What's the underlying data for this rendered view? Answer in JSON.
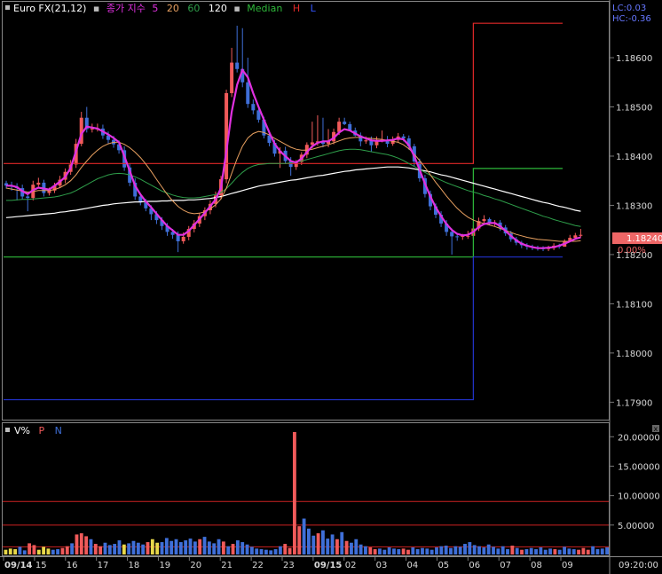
{
  "main_legend": {
    "instrument": "Euro FX(21,12)",
    "ma_label": "종가 지수",
    "ma5": "5",
    "ma20": "20",
    "ma60": "60",
    "ma120": "120",
    "median": "Median",
    "h": "H",
    "l": "L"
  },
  "readouts": {
    "lc": "LC:0.03",
    "hc": "HC:-0.36"
  },
  "last_price": {
    "value": "1.18240",
    "pct": "0.00%"
  },
  "vol_legend": {
    "name": "V%",
    "p": "P",
    "n": "N"
  },
  "time_label": "09:20:00",
  "colors": {
    "up": "#f05a5a",
    "down": "#3f6fd8",
    "ma5": "#e030e0",
    "ma20": "#e8a060",
    "ma60": "#2e9e4a",
    "ma120": "#ffffff",
    "h_line": "#e02828",
    "median_line": "#2eb83a",
    "l_line": "#2233cc",
    "grid": "#777777",
    "last_bg": "#ee6666"
  },
  "chart_data": [
    {
      "type": "candlestick",
      "title": "Euro FX(21,12)",
      "ylim": [
        1.1787,
        1.1871
      ],
      "y_ticks": [
        "1.18600",
        "1.18500",
        "1.18400",
        "1.18300",
        "1.18200",
        "1.18100",
        "1.18000",
        "1.17900"
      ],
      "x_ticks": [
        "09/14",
        "15",
        "16",
        "17",
        "18",
        "19",
        "20",
        "21",
        "22",
        "23",
        "09/15",
        "02",
        "03",
        "04",
        "05",
        "06",
        "07",
        "08",
        "09"
      ],
      "candles": {
        "open": [
          1.18345,
          1.1834,
          1.18338,
          1.18335,
          1.18318,
          1.18315,
          1.18342,
          1.18346,
          1.18325,
          1.1833,
          1.1834,
          1.18352,
          1.18368,
          1.18383,
          1.18425,
          1.18478,
          1.18455,
          1.18456,
          1.18456,
          1.18442,
          1.18433,
          1.18424,
          1.18412,
          1.18377,
          1.18346,
          1.18318,
          1.18306,
          1.18294,
          1.18282,
          1.1827,
          1.18258,
          1.18246,
          1.1824,
          1.18227,
          1.18236,
          1.18252,
          1.18263,
          1.18278,
          1.1829,
          1.18303,
          1.1832,
          1.18353,
          1.18528,
          1.1859,
          1.18577,
          1.1855,
          1.18506,
          1.18493,
          1.18474,
          1.18442,
          1.18427,
          1.18405,
          1.18411,
          1.1839,
          1.18378,
          1.18388,
          1.18403,
          1.18423,
          1.18428,
          1.1843,
          1.18425,
          1.1843,
          1.18449,
          1.1847,
          1.18465,
          1.18452,
          1.18442,
          1.1843,
          1.18432,
          1.18422,
          1.18433,
          1.18433,
          1.18425,
          1.18433,
          1.1844,
          1.18436,
          1.1842,
          1.18389,
          1.18355,
          1.18323,
          1.18298,
          1.18281,
          1.18263,
          1.18246,
          1.18237,
          1.18236,
          1.18238,
          1.18238,
          1.18253,
          1.18268,
          1.18272,
          1.18265,
          1.18265,
          1.18255,
          1.18243,
          1.18231,
          1.18224,
          1.18219,
          1.18216,
          1.18214,
          1.18213,
          1.18212,
          1.18213,
          1.18218,
          1.18216,
          1.18226,
          1.18234,
          1.18239
        ],
        "close": [
          1.1834,
          1.18338,
          1.18335,
          1.18318,
          1.18315,
          1.18342,
          1.18346,
          1.18325,
          1.1833,
          1.1834,
          1.18352,
          1.18368,
          1.18383,
          1.18425,
          1.18478,
          1.18455,
          1.18456,
          1.18456,
          1.18442,
          1.18433,
          1.18424,
          1.18412,
          1.18377,
          1.18346,
          1.18318,
          1.18306,
          1.18294,
          1.18282,
          1.1827,
          1.18258,
          1.18246,
          1.1824,
          1.18227,
          1.18236,
          1.18252,
          1.18263,
          1.18278,
          1.1829,
          1.18303,
          1.1832,
          1.18353,
          1.18528,
          1.1859,
          1.18577,
          1.1855,
          1.18506,
          1.18493,
          1.18474,
          1.18442,
          1.18427,
          1.18405,
          1.18411,
          1.1839,
          1.18378,
          1.18388,
          1.18403,
          1.18423,
          1.18428,
          1.1843,
          1.18425,
          1.1843,
          1.18449,
          1.1847,
          1.18465,
          1.18452,
          1.18442,
          1.1843,
          1.18432,
          1.18422,
          1.18433,
          1.18433,
          1.18425,
          1.18433,
          1.1844,
          1.18436,
          1.1842,
          1.18389,
          1.18355,
          1.18323,
          1.18298,
          1.18281,
          1.18263,
          1.18246,
          1.18237,
          1.18236,
          1.18238,
          1.18238,
          1.18253,
          1.18268,
          1.18272,
          1.18265,
          1.18265,
          1.18255,
          1.18243,
          1.18231,
          1.18224,
          1.18219,
          1.18216,
          1.18214,
          1.18213,
          1.18212,
          1.18213,
          1.18218,
          1.18216,
          1.18226,
          1.18234,
          1.18239,
          1.1824
        ],
        "high": [
          1.1835,
          1.18348,
          1.18345,
          1.18342,
          1.18325,
          1.1835,
          1.18356,
          1.18352,
          1.18336,
          1.18346,
          1.1836,
          1.18375,
          1.18392,
          1.18435,
          1.1849,
          1.185,
          1.18466,
          1.18466,
          1.18464,
          1.1845,
          1.18441,
          1.18432,
          1.1842,
          1.18385,
          1.18355,
          1.18325,
          1.18313,
          1.183,
          1.18288,
          1.18276,
          1.18264,
          1.18252,
          1.18247,
          1.18245,
          1.18258,
          1.1827,
          1.18285,
          1.18296,
          1.1831,
          1.18328,
          1.1836,
          1.18535,
          1.1862,
          1.18665,
          1.1866,
          1.186,
          1.18515,
          1.185,
          1.1848,
          1.1845,
          1.18433,
          1.18418,
          1.18419,
          1.18398,
          1.18392,
          1.18408,
          1.18428,
          1.1847,
          1.18483,
          1.18478,
          1.18455,
          1.18456,
          1.18478,
          1.18478,
          1.1847,
          1.18458,
          1.18448,
          1.1844,
          1.1844,
          1.1844,
          1.18452,
          1.18441,
          1.1844,
          1.18447,
          1.18445,
          1.18442,
          1.18425,
          1.18395,
          1.18362,
          1.1833,
          1.18304,
          1.18288,
          1.1827,
          1.18253,
          1.18243,
          1.18242,
          1.18248,
          1.1826,
          1.18275,
          1.1828,
          1.18275,
          1.1827,
          1.1827,
          1.1826,
          1.18248,
          1.18236,
          1.18228,
          1.18223,
          1.1822,
          1.18218,
          1.18217,
          1.18218,
          1.18223,
          1.18222,
          1.18231,
          1.1824,
          1.18244,
          1.18252
        ],
        "low": [
          1.18334,
          1.1833,
          1.1831,
          1.18312,
          1.18288,
          1.1831,
          1.18338,
          1.18318,
          1.1832,
          1.18325,
          1.18335,
          1.18345,
          1.18362,
          1.18376,
          1.1842,
          1.18448,
          1.18448,
          1.1845,
          1.18435,
          1.18426,
          1.18417,
          1.18405,
          1.1837,
          1.18339,
          1.18311,
          1.183,
          1.18288,
          1.1827,
          1.18262,
          1.1825,
          1.18238,
          1.18232,
          1.18205,
          1.18222,
          1.18229,
          1.18245,
          1.18256,
          1.1827,
          1.18282,
          1.18296,
          1.18312,
          1.18345,
          1.1852,
          1.1857,
          1.1854,
          1.18498,
          1.18485,
          1.18468,
          1.18436,
          1.1842,
          1.18399,
          1.18376,
          1.18384,
          1.1836,
          1.18372,
          1.18382,
          1.18396,
          1.18416,
          1.18421,
          1.18418,
          1.18418,
          1.18424,
          1.18443,
          1.18463,
          1.18458,
          1.1844,
          1.1842,
          1.18425,
          1.18408,
          1.18416,
          1.18428,
          1.18418,
          1.18421,
          1.18428,
          1.1843,
          1.18413,
          1.1838,
          1.18348,
          1.18316,
          1.1829,
          1.18274,
          1.18256,
          1.18238,
          1.182,
          1.18228,
          1.1823,
          1.18232,
          1.18233,
          1.18248,
          1.18262,
          1.1826,
          1.18258,
          1.18248,
          1.18238,
          1.18226,
          1.18219,
          1.18213,
          1.1821,
          1.18209,
          1.18208,
          1.18207,
          1.18207,
          1.18209,
          1.18212,
          1.18216,
          1.18226,
          1.18232,
          1.18235
        ]
      },
      "ma5": [
        1.1834,
        1.1834,
        1.18337,
        1.18329,
        1.18323,
        1.18331,
        1.18336,
        1.18334,
        1.18332,
        1.1834,
        1.18348,
        1.18358,
        1.18376,
        1.1841,
        1.18445,
        1.1846,
        1.18458,
        1.18456,
        1.1845,
        1.18444,
        1.18437,
        1.18428,
        1.184,
        1.1837,
        1.1834,
        1.18322,
        1.18308,
        1.18296,
        1.18283,
        1.1827,
        1.18258,
        1.18249,
        1.1824,
        1.1824,
        1.18248,
        1.1826,
        1.18272,
        1.18285,
        1.18298,
        1.18312,
        1.18335,
        1.1841,
        1.1849,
        1.18545,
        1.18575,
        1.1856,
        1.18528,
        1.185,
        1.18474,
        1.18448,
        1.18425,
        1.1841,
        1.184,
        1.1839,
        1.18387,
        1.18395,
        1.18408,
        1.1842,
        1.18427,
        1.1843,
        1.1843,
        1.18437,
        1.18448,
        1.18455,
        1.18452,
        1.18446,
        1.1844,
        1.18436,
        1.18432,
        1.18431,
        1.18431,
        1.18432,
        1.18433,
        1.18436,
        1.18434,
        1.18422,
        1.184,
        1.18372,
        1.18344,
        1.18318,
        1.18296,
        1.18278,
        1.18262,
        1.1825,
        1.18242,
        1.18239,
        1.1824,
        1.18246,
        1.18256,
        1.18262,
        1.18264,
        1.18264,
        1.18258,
        1.18248,
        1.18238,
        1.18229,
        1.18222,
        1.18218,
        1.18215,
        1.18213,
        1.18213,
        1.18214,
        1.18215,
        1.18218,
        1.18222,
        1.18227,
        1.18232,
        1.18235
      ],
      "ma20": [
        1.18335,
        1.18333,
        1.18331,
        1.18329,
        1.18327,
        1.18328,
        1.1833,
        1.1833,
        1.1833,
        1.18332,
        1.18336,
        1.18342,
        1.1835,
        1.18362,
        1.18377,
        1.1839,
        1.18402,
        1.18412,
        1.1842,
        1.18425,
        1.18428,
        1.18428,
        1.18424,
        1.18417,
        1.18408,
        1.18397,
        1.18384,
        1.18369,
        1.18353,
        1.18337,
        1.18322,
        1.18309,
        1.18298,
        1.1829,
        1.18285,
        1.18283,
        1.18284,
        1.18287,
        1.18293,
        1.18301,
        1.18313,
        1.18335,
        1.18365,
        1.18395,
        1.1842,
        1.18437,
        1.18446,
        1.1845,
        1.18448,
        1.18443,
        1.18436,
        1.1843,
        1.18424,
        1.18418,
        1.18414,
        1.18412,
        1.18412,
        1.18414,
        1.18417,
        1.1842,
        1.18423,
        1.18427,
        1.18431,
        1.18435,
        1.18437,
        1.18438,
        1.18438,
        1.18437,
        1.18436,
        1.18435,
        1.18434,
        1.18432,
        1.1843,
        1.18428,
        1.18423,
        1.18415,
        1.18404,
        1.18391,
        1.18377,
        1.18362,
        1.18347,
        1.18333,
        1.18319,
        1.18306,
        1.18294,
        1.18284,
        1.18276,
        1.1827,
        1.18266,
        1.18263,
        1.1826,
        1.18257,
        1.18253,
        1.18249,
        1.18245,
        1.18241,
        1.18238,
        1.18235,
        1.18233,
        1.18231,
        1.1823,
        1.18229,
        1.18228,
        1.18227,
        1.18227,
        1.18227,
        1.18227,
        1.18228
      ],
      "ma60": [
        1.1831,
        1.1831,
        1.18311,
        1.18312,
        1.18312,
        1.18313,
        1.18314,
        1.18315,
        1.18316,
        1.18317,
        1.18319,
        1.18322,
        1.18325,
        1.1833,
        1.18336,
        1.18342,
        1.18348,
        1.18354,
        1.18358,
        1.18362,
        1.18364,
        1.18365,
        1.18364,
        1.18362,
        1.18358,
        1.18353,
        1.18347,
        1.18341,
        1.18335,
        1.18329,
        1.18325,
        1.18321,
        1.18318,
        1.18316,
        1.18315,
        1.18315,
        1.18316,
        1.18318,
        1.1832,
        1.18322,
        1.18326,
        1.18334,
        1.18345,
        1.18357,
        1.18367,
        1.18375,
        1.1838,
        1.18383,
        1.18384,
        1.18385,
        1.18385,
        1.18385,
        1.18385,
        1.18386,
        1.18388,
        1.1839,
        1.18393,
        1.18396,
        1.18399,
        1.18402,
        1.18405,
        1.18408,
        1.18411,
        1.18413,
        1.18414,
        1.18414,
        1.18413,
        1.18411,
        1.18409,
        1.18407,
        1.18405,
        1.18403,
        1.184,
        1.18396,
        1.18391,
        1.18385,
        1.18379,
        1.18373,
        1.18367,
        1.18361,
        1.18356,
        1.18351,
        1.18346,
        1.18342,
        1.18338,
        1.18334,
        1.1833,
        1.18327,
        1.18324,
        1.1832,
        1.18317,
        1.18313,
        1.1831,
        1.18306,
        1.18302,
        1.18298,
        1.18294,
        1.1829,
        1.18286,
        1.18282,
        1.18278,
        1.18275,
        1.18271,
        1.18268,
        1.18265,
        1.18262,
        1.18259,
        1.18257
      ],
      "ma120": [
        1.18275,
        1.18276,
        1.18277,
        1.18278,
        1.18279,
        1.1828,
        1.18281,
        1.18282,
        1.18283,
        1.18284,
        1.18286,
        1.18287,
        1.18289,
        1.1829,
        1.18292,
        1.18294,
        1.18296,
        1.18298,
        1.183,
        1.18301,
        1.18303,
        1.18304,
        1.18305,
        1.18306,
        1.18307,
        1.18307,
        1.18308,
        1.18308,
        1.18308,
        1.18309,
        1.18309,
        1.1831,
        1.1831,
        1.1831,
        1.18311,
        1.18311,
        1.18312,
        1.18313,
        1.18314,
        1.18316,
        1.18318,
        1.18321,
        1.18324,
        1.18327,
        1.1833,
        1.18333,
        1.18336,
        1.18339,
        1.18341,
        1.18343,
        1.18345,
        1.18347,
        1.18349,
        1.18351,
        1.18352,
        1.18354,
        1.18356,
        1.18358,
        1.1836,
        1.18361,
        1.18363,
        1.18365,
        1.18367,
        1.18369,
        1.1837,
        1.18372,
        1.18373,
        1.18374,
        1.18375,
        1.18376,
        1.18377,
        1.18378,
        1.18378,
        1.18378,
        1.18377,
        1.18376,
        1.18374,
        1.18372,
        1.1837,
        1.18368,
        1.18365,
        1.18362,
        1.1836,
        1.18357,
        1.18354,
        1.18351,
        1.18348,
        1.18345,
        1.18342,
        1.18339,
        1.18336,
        1.18333,
        1.1833,
        1.18327,
        1.18324,
        1.18321,
        1.18318,
        1.18315,
        1.18312,
        1.18309,
        1.18306,
        1.18304,
        1.18301,
        1.18298,
        1.18296,
        1.18293,
        1.1829,
        1.18288
      ],
      "h_line": {
        "level": 1.18385,
        "level_after": 1.1867,
        "switch_index": 87
      },
      "median_line": {
        "level": 1.18195,
        "level_after": 1.18375,
        "switch_index": 87
      },
      "l_line": {
        "level": 1.17905,
        "level_after": 1.18195,
        "switch_index": 87
      },
      "last_value": 1.1824
    },
    {
      "type": "bar",
      "title": "V%",
      "ylim": [
        0,
        22
      ],
      "y_ticks": [
        "20.00000",
        "15.00000",
        "10.00000",
        "5.00000"
      ],
      "ref_lines": [
        9,
        5,
        1.3
      ],
      "values": [
        0.8,
        1.0,
        0.9,
        1.3,
        0.7,
        1.9,
        1.6,
        0.8,
        1.3,
        1.0,
        0.8,
        0.9,
        1.1,
        1.4,
        1.9,
        3.4,
        3.6,
        3.1,
        2.6,
        1.8,
        1.4,
        2.0,
        1.6,
        1.8,
        2.4,
        1.7,
        1.9,
        2.3,
        2.0,
        1.7,
        2.1,
        2.6,
        2.0,
        2.1,
        2.8,
        2.3,
        2.6,
        2.1,
        2.4,
        2.7,
        2.2,
        2.6,
        3.0,
        2.2,
        1.9,
        2.6,
        2.2,
        1.4,
        1.8,
        2.4,
        2.1,
        1.7,
        1.3,
        1.0,
        0.9,
        0.8,
        0.7,
        0.9,
        1.4,
        1.8,
        1.1,
        20.8,
        4.8,
        6.1,
        4.4,
        3.2,
        3.6,
        4.1,
        2.7,
        3.4,
        2.6,
        3.8,
        2.3,
        2.0,
        2.6,
        1.7,
        1.4,
        1.2,
        0.9,
        1.0,
        0.8,
        1.2,
        1.0,
        0.9,
        1.0,
        0.8,
        1.2,
        0.9,
        1.1,
        1.0,
        0.8,
        1.2,
        1.4,
        1.5,
        1.1,
        1.4,
        1.3,
        1.8,
        2.1,
        1.6,
        1.4,
        1.2,
        1.7,
        1.3,
        1.0,
        1.4,
        0.9,
        1.5,
        1.1,
        0.8,
        0.9,
        1.1,
        0.9,
        1.2,
        0.8,
        1.0,
        0.9,
        0.8,
        1.3,
        1.0,
        0.9,
        0.8,
        1.1,
        0.8,
        1.4,
        0.9,
        1.0,
        1.2
      ],
      "color_codes": "yyybbrryyybbrrbrrrbrrbbbbybbbbryybbbbbbbbrbbbbrbrbbbbbbbbbbrrrrbbbrbbbrbrbbbbrrbbbbbrrbbbbbbbbbbbbbbbbbbbbbrbrbbbbbbrbbbbrrrbbbbbbbbb"
    }
  ]
}
